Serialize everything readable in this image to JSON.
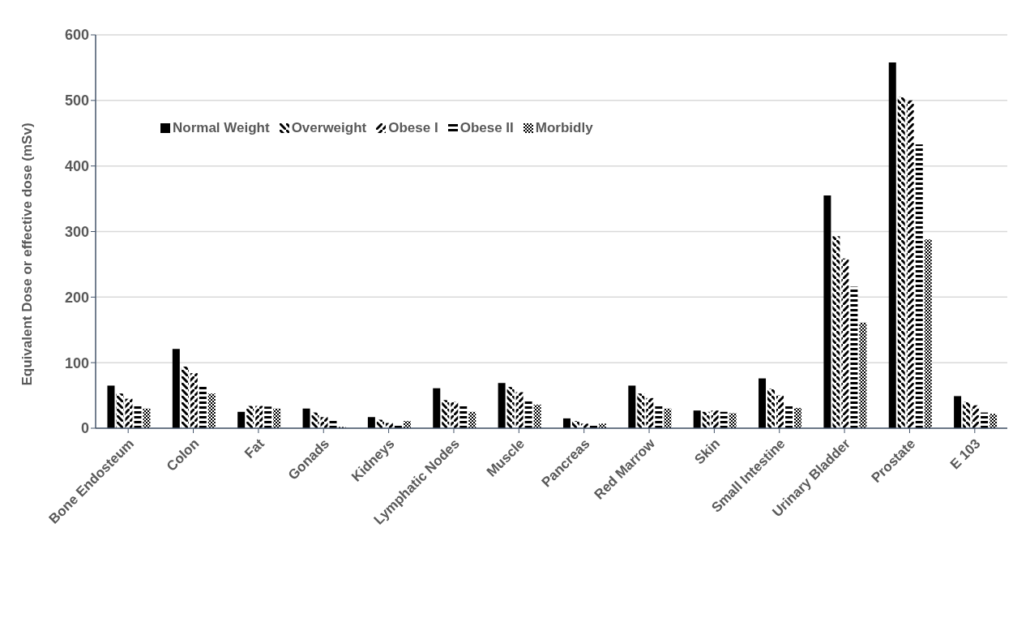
{
  "chart_data": {
    "type": "bar",
    "ylabel": "Equivalent Dose or effective dose (mSv)",
    "categories": [
      "Bone Endosteum",
      "Colon",
      "Fat",
      "Gonads",
      "Kidneys",
      "Lymphatic Nodes",
      "Muscle",
      "Pancreas",
      "Red Marrow",
      "Skin",
      "Small Intestine",
      "Urinary Bladder",
      "Prostate",
      "E 103"
    ],
    "series": [
      {
        "name": "Normal Weight",
        "color": "#000000",
        "values": [
          65,
          121,
          25,
          30,
          17,
          61,
          69,
          15,
          65,
          27,
          76,
          355,
          558,
          49
        ]
      },
      {
        "name": "Overweight",
        "color": "#000000",
        "values": [
          53,
          94,
          34,
          24,
          13,
          43,
          63,
          11,
          53,
          25,
          60,
          293,
          505,
          40
        ]
      },
      {
        "name": "Obese I",
        "color": "#000000",
        "values": [
          45,
          84,
          34,
          17,
          8,
          40,
          55,
          7,
          46,
          27,
          50,
          259,
          500,
          35
        ]
      },
      {
        "name": "Obese II",
        "color": "#000000",
        "values": [
          35,
          66,
          33,
          12,
          4,
          34,
          43,
          6,
          35,
          25,
          35,
          216,
          433,
          24
        ]
      },
      {
        "name": "Morbidly",
        "color": "#000000",
        "values": [
          30,
          53,
          30,
          2,
          11,
          25,
          36,
          7,
          30,
          23,
          31,
          161,
          288,
          22
        ]
      }
    ],
    "ylim": [
      0,
      600
    ],
    "yticks": [
      0,
      100,
      200,
      300,
      400,
      500,
      600
    ],
    "grid": "y",
    "legend": "top left"
  }
}
